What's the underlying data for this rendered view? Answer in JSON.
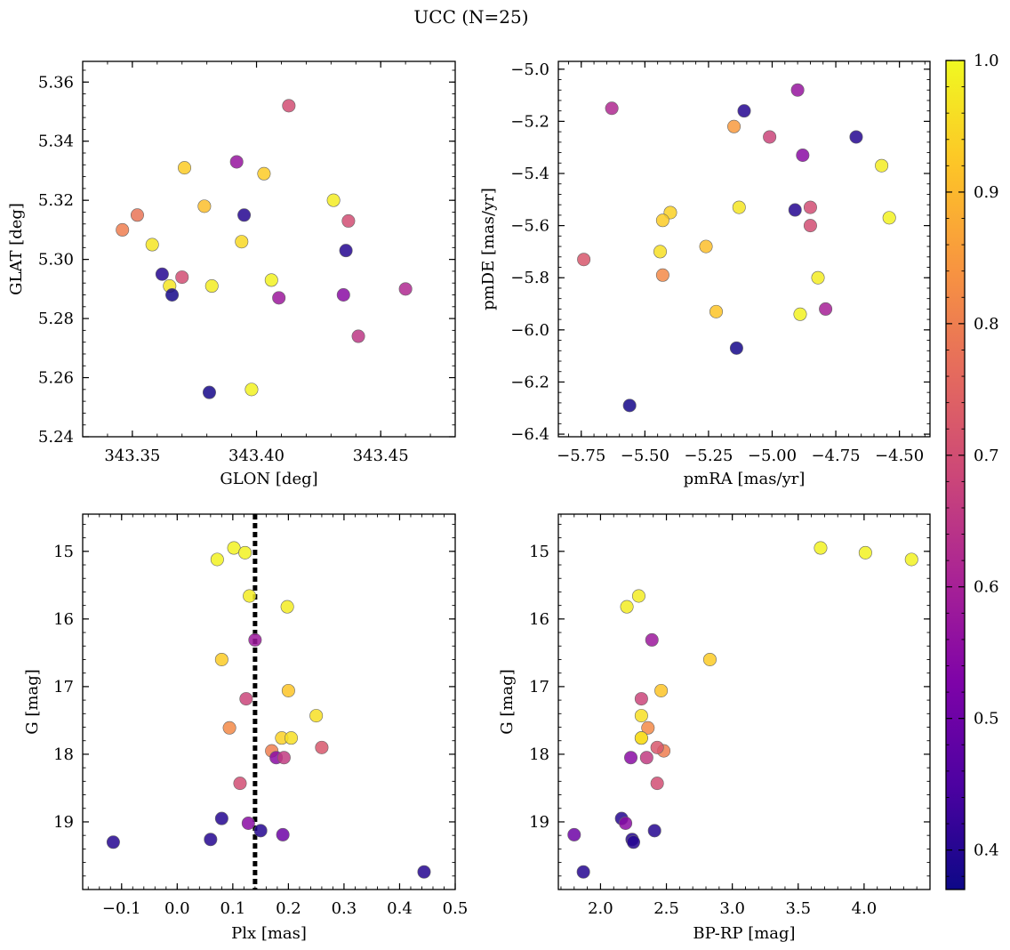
{
  "suptitle": "UCC (N=25)",
  "colorbar": {
    "colormap": "plasma",
    "range": [
      0.37,
      1.0
    ],
    "ticks": [
      0.4,
      0.5,
      0.6,
      0.7,
      0.8,
      0.9,
      1.0
    ],
    "tick_labels": [
      "0.4",
      "0.5",
      "0.6",
      "0.7",
      "0.8",
      "0.9",
      "1.0"
    ]
  },
  "chart_data": [
    {
      "type": "scatter",
      "id": "glon-glat",
      "xlabel": "GLON [deg]",
      "ylabel": "GLAT [deg]",
      "xlim": [
        343.33,
        343.48
      ],
      "ylim": [
        5.24,
        5.367
      ],
      "xticks": [
        343.35,
        343.4,
        343.45
      ],
      "xtick_labels": [
        "343.35",
        "343.40",
        "343.45"
      ],
      "yticks": [
        5.24,
        5.26,
        5.28,
        5.3,
        5.32,
        5.34,
        5.36
      ],
      "ytick_labels": [
        "5.24",
        "5.26",
        "5.28",
        "5.30",
        "5.32",
        "5.34",
        "5.36"
      ],
      "x": [
        343.346,
        343.352,
        343.358,
        343.362,
        343.365,
        343.366,
        343.37,
        343.371,
        343.379,
        343.381,
        343.382,
        343.392,
        343.394,
        343.395,
        343.398,
        343.403,
        343.406,
        343.409,
        343.413,
        343.431,
        343.435,
        343.436,
        343.437,
        343.441,
        343.46
      ],
      "y": [
        5.31,
        5.315,
        5.305,
        5.295,
        5.291,
        5.288,
        5.294,
        5.331,
        5.318,
        5.255,
        5.291,
        5.333,
        5.306,
        5.315,
        5.256,
        5.329,
        5.293,
        5.287,
        5.352,
        5.32,
        5.288,
        5.303,
        5.313,
        5.274,
        5.29
      ],
      "c": [
        0.8,
        0.78,
        0.97,
        0.4,
        0.97,
        0.38,
        0.7,
        0.93,
        0.91,
        0.38,
        0.98,
        0.57,
        0.95,
        0.4,
        0.99,
        0.93,
        0.99,
        0.58,
        0.7,
        0.98,
        0.55,
        0.4,
        0.7,
        0.65,
        0.62
      ]
    },
    {
      "type": "scatter",
      "id": "pmra-pmde",
      "xlabel": "pmRA [mas/yr]",
      "ylabel": "pmDE [mas/yr]",
      "xlim": [
        -5.84,
        -4.38
      ],
      "ylim": [
        -6.41,
        -4.97
      ],
      "xticks": [
        -5.75,
        -5.5,
        -5.25,
        -5.0,
        -4.75,
        -4.5
      ],
      "xtick_labels": [
        "−5.75",
        "−5.50",
        "−5.25",
        "−5.00",
        "−4.75",
        "−4.50"
      ],
      "yticks": [
        -6.4,
        -6.2,
        -6.0,
        -5.8,
        -5.6,
        -5.4,
        -5.2,
        -5.0
      ],
      "ytick_labels": [
        "−6.4",
        "−6.2",
        "−6.0",
        "−5.8",
        "−5.6",
        "−5.4",
        "−5.2",
        "−5.0"
      ],
      "x": [
        -5.63,
        -5.11,
        -4.9,
        -5.15,
        -5.01,
        -4.88,
        -4.67,
        -4.57,
        -4.54,
        -5.13,
        -4.91,
        -4.85,
        -5.4,
        -5.43,
        -5.26,
        -4.85,
        -5.74,
        -5.44,
        -5.43,
        -4.82,
        -5.22,
        -4.89,
        -4.79,
        -5.14,
        -5.56
      ],
      "y": [
        -5.15,
        -5.16,
        -5.08,
        -5.22,
        -5.26,
        -5.33,
        -5.26,
        -5.37,
        -5.57,
        -5.53,
        -5.54,
        -5.53,
        -5.55,
        -5.58,
        -5.68,
        -5.6,
        -5.73,
        -5.7,
        -5.79,
        -5.8,
        -5.93,
        -5.94,
        -5.92,
        -6.07,
        -6.29
      ],
      "c": [
        0.62,
        0.4,
        0.57,
        0.85,
        0.68,
        0.55,
        0.4,
        0.98,
        0.99,
        0.97,
        0.4,
        0.7,
        0.94,
        0.93,
        0.91,
        0.7,
        0.72,
        0.96,
        0.82,
        0.98,
        0.92,
        0.99,
        0.6,
        0.38,
        0.38
      ]
    },
    {
      "type": "scatter",
      "id": "plx-g",
      "xlabel": "Plx [mas]",
      "ylabel": "G [mag]",
      "xlim": [
        -0.17,
        0.5
      ],
      "ylim": [
        20.0,
        14.45
      ],
      "yinverted": true,
      "xticks": [
        -0.1,
        0.0,
        0.1,
        0.2,
        0.3,
        0.4,
        0.5
      ],
      "xtick_labels": [
        "−0.1",
        "0.0",
        "0.1",
        "0.2",
        "0.3",
        "0.4",
        "0.5"
      ],
      "yticks": [
        15,
        16,
        17,
        18,
        19
      ],
      "ytick_labels": [
        "15",
        "16",
        "17",
        "18",
        "19"
      ],
      "vline": 0.14,
      "x": [
        0.072,
        0.102,
        0.122,
        0.13,
        0.198,
        0.14,
        0.08,
        0.2,
        0.25,
        0.124,
        0.094,
        0.188,
        0.205,
        0.17,
        0.26,
        0.178,
        0.192,
        0.113,
        0.08,
        0.128,
        0.15,
        0.06,
        0.19,
        -0.115,
        0.444
      ],
      "y": [
        15.12,
        14.95,
        15.02,
        15.66,
        15.82,
        16.31,
        16.6,
        17.06,
        17.43,
        17.18,
        17.61,
        17.76,
        17.76,
        17.95,
        17.9,
        18.05,
        18.05,
        18.43,
        18.95,
        19.02,
        19.13,
        19.26,
        19.19,
        19.3,
        19.74
      ],
      "c": [
        0.99,
        0.99,
        0.99,
        0.98,
        0.98,
        0.58,
        0.93,
        0.92,
        0.96,
        0.68,
        0.82,
        0.94,
        0.96,
        0.8,
        0.72,
        0.55,
        0.66,
        0.7,
        0.4,
        0.55,
        0.4,
        0.4,
        0.5,
        0.4,
        0.4
      ]
    },
    {
      "type": "scatter",
      "id": "bprp-g",
      "xlabel": "BP-RP [mag]",
      "ylabel": "G [mag]",
      "xlim": [
        1.68,
        4.5
      ],
      "ylim": [
        20.0,
        14.45
      ],
      "yinverted": true,
      "xticks": [
        2.0,
        2.5,
        3.0,
        3.5,
        4.0
      ],
      "xtick_labels": [
        "2.0",
        "2.5",
        "3.0",
        "3.5",
        "4.0"
      ],
      "yticks": [
        15,
        16,
        17,
        18,
        19
      ],
      "ytick_labels": [
        "15",
        "16",
        "17",
        "18",
        "19"
      ],
      "x": [
        3.67,
        4.01,
        4.36,
        2.29,
        2.2,
        2.39,
        2.83,
        2.46,
        2.31,
        2.31,
        2.36,
        2.31,
        2.31,
        2.48,
        2.43,
        2.23,
        2.35,
        2.43,
        2.16,
        2.19,
        2.41,
        2.24,
        2.25,
        1.8,
        1.87
      ],
      "y": [
        14.95,
        15.02,
        15.12,
        15.66,
        15.82,
        16.31,
        16.6,
        17.06,
        17.18,
        17.43,
        17.61,
        17.76,
        17.76,
        17.95,
        17.9,
        18.05,
        18.05,
        18.43,
        18.95,
        19.02,
        19.13,
        19.26,
        19.3,
        19.19,
        19.74
      ],
      "c": [
        0.99,
        0.99,
        0.99,
        0.98,
        0.98,
        0.58,
        0.93,
        0.92,
        0.68,
        0.96,
        0.82,
        0.94,
        0.96,
        0.8,
        0.72,
        0.55,
        0.66,
        0.7,
        0.4,
        0.55,
        0.4,
        0.4,
        0.4,
        0.5,
        0.4
      ]
    }
  ]
}
